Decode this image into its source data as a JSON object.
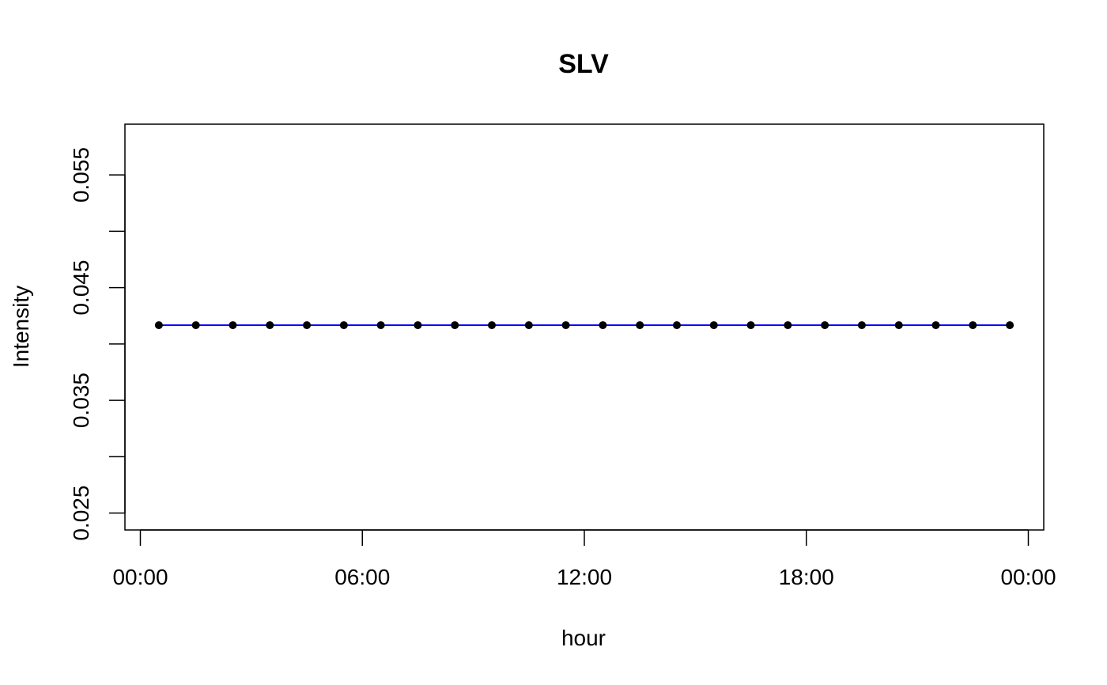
{
  "chart_data": {
    "type": "line",
    "title": "SLV",
    "xlabel": "hour",
    "ylabel": "Intensity",
    "xlim": [
      "-00:25",
      "24:25"
    ],
    "ylim": [
      0.0235,
      0.0595
    ],
    "x_ticks": [
      {
        "value": "00:00",
        "label": "00:00"
      },
      {
        "value": "06:00",
        "label": "06:00"
      },
      {
        "value": "12:00",
        "label": "12:00"
      },
      {
        "value": "18:00",
        "label": "18:00"
      },
      {
        "value": "24:00",
        "label": "00:00"
      }
    ],
    "y_ticks": [
      {
        "value": 0.025,
        "label": "0.025"
      },
      {
        "value": 0.03,
        "label": ""
      },
      {
        "value": 0.035,
        "label": "0.035"
      },
      {
        "value": 0.04,
        "label": ""
      },
      {
        "value": 0.045,
        "label": "0.045"
      },
      {
        "value": 0.05,
        "label": ""
      },
      {
        "value": 0.055,
        "label": "0.055"
      }
    ],
    "grid": false,
    "colors": {
      "line": "#0000ff",
      "points": "#000000",
      "axis": "#000000"
    },
    "series": [
      {
        "x": [
          "00:30",
          "01:30",
          "02:30",
          "03:30",
          "04:30",
          "05:30",
          "06:30",
          "07:30",
          "08:30",
          "09:30",
          "10:30",
          "11:30",
          "12:30",
          "13:30",
          "14:30",
          "15:30",
          "16:30",
          "17:30",
          "18:30",
          "19:30",
          "20:30",
          "21:30",
          "22:30",
          "23:30"
        ],
        "values": [
          0.04167,
          0.04167,
          0.04167,
          0.04167,
          0.04167,
          0.04167,
          0.04167,
          0.04167,
          0.04167,
          0.04167,
          0.04167,
          0.04167,
          0.04167,
          0.04167,
          0.04167,
          0.04167,
          0.04167,
          0.04167,
          0.04167,
          0.04167,
          0.04167,
          0.04167,
          0.04167,
          0.04167
        ]
      }
    ]
  }
}
